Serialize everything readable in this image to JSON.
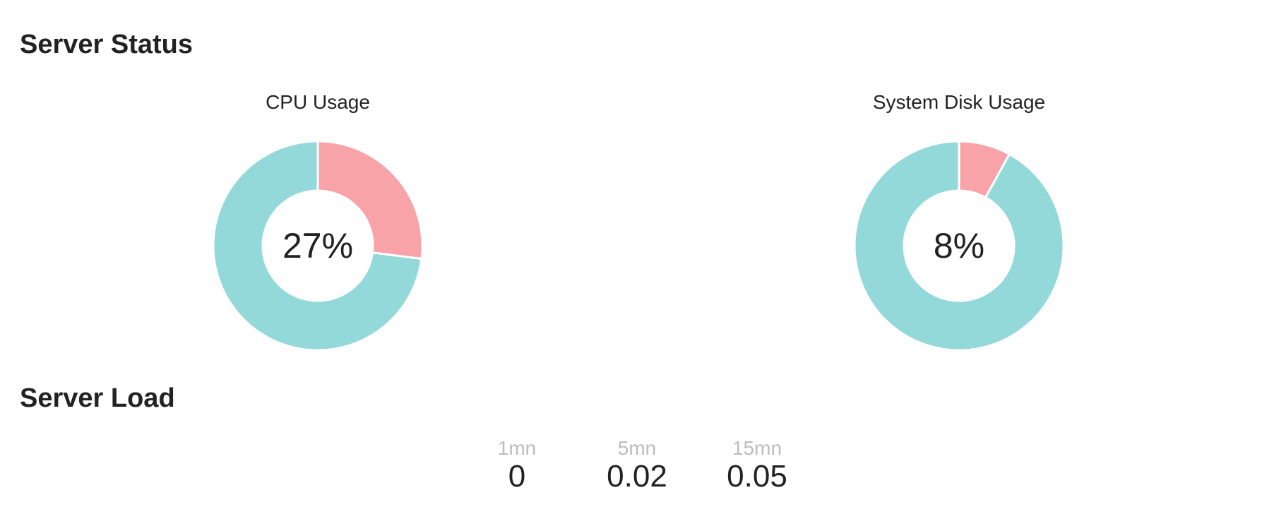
{
  "server_status": {
    "title": "Server Status"
  },
  "server_load": {
    "title": "Server Load",
    "items": [
      {
        "label": "1mn",
        "value": "0"
      },
      {
        "label": "5mn",
        "value": "0.02"
      },
      {
        "label": "15mn",
        "value": "0.05"
      }
    ]
  },
  "colors": {
    "used": "#f8a3a7",
    "free": "#93d9d9",
    "separator": "#ffffff"
  },
  "chart_data": [
    {
      "type": "pie",
      "title": "CPU Usage",
      "center_label": "27%",
      "slices": [
        {
          "value": 27,
          "color": "#f8a3a7"
        },
        {
          "value": 73,
          "color": "#93d9d9"
        }
      ]
    },
    {
      "type": "pie",
      "title": "System Disk Usage",
      "center_label": "8%",
      "slices": [
        {
          "value": 8,
          "color": "#f8a3a7"
        },
        {
          "value": 92,
          "color": "#93d9d9"
        }
      ]
    }
  ]
}
